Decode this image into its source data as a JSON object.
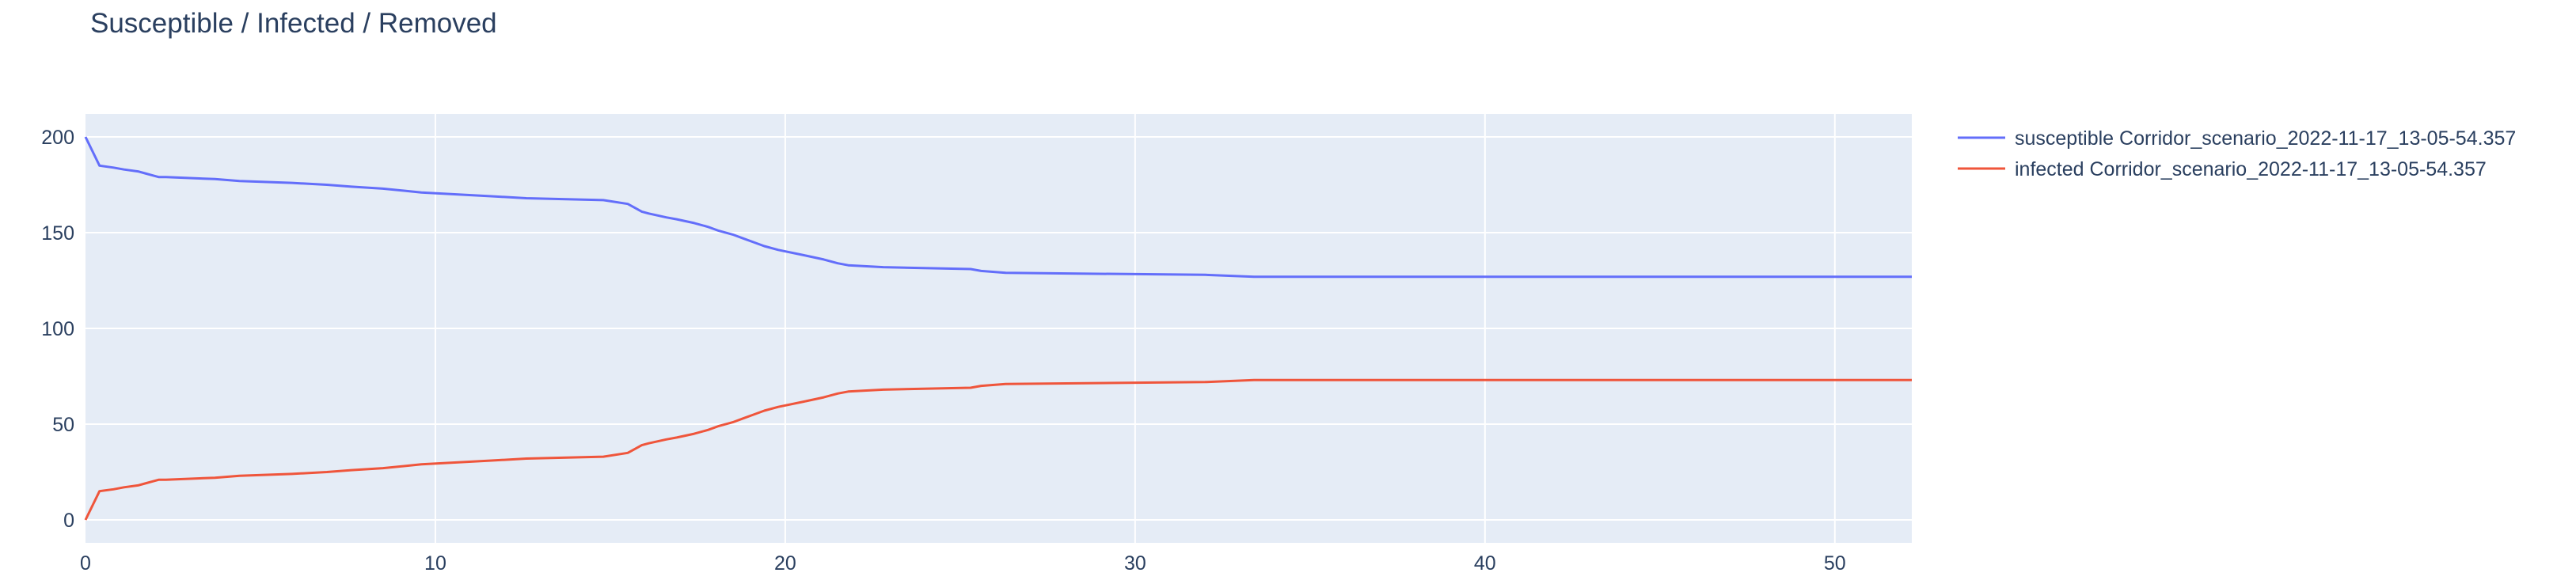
{
  "chart_data": {
    "type": "line",
    "title": "Susceptible / Infected / Removed",
    "xlabel": "",
    "ylabel": "",
    "xlim": [
      0,
      52.2
    ],
    "ylim": [
      -12,
      212
    ],
    "xticks": [
      0,
      10,
      20,
      30,
      40,
      50
    ],
    "yticks": [
      0,
      50,
      100,
      150,
      200
    ],
    "grid": true,
    "legend_position": "top-right",
    "series": [
      {
        "name": "susceptible Corridor_scenario_2022-11-17_13-05-54.357",
        "color": "#636efa",
        "x": [
          0,
          0.4,
          0.8,
          1.1,
          1.5,
          1.7,
          1.9,
          2.1,
          2.3,
          3.7,
          4.4,
          5.9,
          6.9,
          7.6,
          8.5,
          9.6,
          11.6,
          12.6,
          14.8,
          15.5,
          15.7,
          15.9,
          16.1,
          16.6,
          16.9,
          17.4,
          17.8,
          18.1,
          18.5,
          18.8,
          19.1,
          19.4,
          19.8,
          20.6,
          21.1,
          21.5,
          21.8,
          22.8,
          25.3,
          25.6,
          26.3,
          32.0,
          33.4,
          52.2
        ],
        "y": [
          200,
          185,
          184,
          183,
          182,
          181,
          180,
          179,
          179,
          178,
          177,
          176,
          175,
          174,
          173,
          171,
          169,
          168,
          167,
          165,
          163,
          161,
          160,
          158,
          157,
          155,
          153,
          151,
          149,
          147,
          145,
          143,
          141,
          138,
          136,
          134,
          133,
          132,
          131,
          130,
          129,
          128,
          127,
          127
        ]
      },
      {
        "name": "infected Corridor_scenario_2022-11-17_13-05-54.357",
        "color": "#ef553b",
        "x": [
          0,
          0.4,
          0.8,
          1.1,
          1.5,
          1.7,
          1.9,
          2.1,
          2.3,
          3.7,
          4.4,
          5.9,
          6.9,
          7.6,
          8.5,
          9.6,
          11.6,
          12.6,
          14.8,
          15.5,
          15.7,
          15.9,
          16.1,
          16.6,
          16.9,
          17.4,
          17.8,
          18.1,
          18.5,
          18.8,
          19.1,
          19.4,
          19.8,
          20.6,
          21.1,
          21.5,
          21.8,
          22.8,
          25.3,
          25.6,
          26.3,
          32.0,
          33.4,
          52.2
        ],
        "y": [
          0,
          15,
          16,
          17,
          18,
          19,
          20,
          21,
          21,
          22,
          23,
          24,
          25,
          26,
          27,
          29,
          31,
          32,
          33,
          35,
          37,
          39,
          40,
          42,
          43,
          45,
          47,
          49,
          51,
          53,
          55,
          57,
          59,
          62,
          64,
          66,
          67,
          68,
          69,
          70,
          71,
          72,
          73,
          73
        ]
      }
    ]
  }
}
